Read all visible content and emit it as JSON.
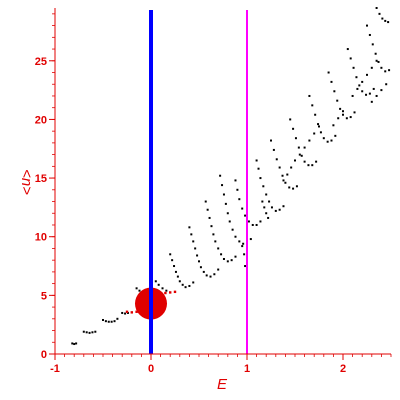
{
  "chart_data": {
    "type": "scatter",
    "xlabel": "E",
    "ylabel": "<n>",
    "xlim": [
      -1,
      2.5
    ],
    "ylim": [
      0,
      29.5
    ],
    "x_ticks": [
      -1,
      0,
      1,
      2
    ],
    "y_ticks": [
      0,
      5,
      10,
      15,
      20,
      25
    ],
    "grid": false,
    "colors": {
      "axes": "#e00000",
      "points": "#000000",
      "highlight": "#e00000",
      "line_zero": "#0000ff",
      "line_one": "#ff00ff"
    },
    "vertical_lines": [
      {
        "x": 0,
        "color": "#0000ff"
      },
      {
        "x": 1,
        "color": "#ff00ff"
      }
    ],
    "highlight_marker": {
      "x": 0.0,
      "y": 4.3
    },
    "highlight_points": [
      [
        -0.25,
        3.6
      ],
      [
        -0.2,
        3.55
      ],
      [
        -0.15,
        3.6
      ],
      [
        -0.1,
        3.7
      ],
      [
        0.05,
        4.9
      ],
      [
        0.1,
        5.1
      ],
      [
        0.15,
        5.2
      ],
      [
        0.2,
        5.25
      ],
      [
        0.25,
        5.3
      ]
    ],
    "points": [
      [
        -0.82,
        0.9
      ],
      [
        -0.8,
        0.85
      ],
      [
        -0.78,
        0.9
      ],
      [
        -0.7,
        1.9
      ],
      [
        -0.67,
        1.85
      ],
      [
        -0.64,
        1.8
      ],
      [
        -0.61,
        1.85
      ],
      [
        -0.58,
        1.9
      ],
      [
        -0.5,
        2.9
      ],
      [
        -0.47,
        2.8
      ],
      [
        -0.44,
        2.75
      ],
      [
        -0.41,
        2.75
      ],
      [
        -0.38,
        2.8
      ],
      [
        -0.35,
        3.0
      ],
      [
        -0.3,
        3.5
      ],
      [
        -0.27,
        3.45
      ],
      [
        -0.24,
        3.5
      ],
      [
        -0.15,
        5.6
      ],
      [
        -0.12,
        5.4
      ],
      [
        -0.09,
        5.3
      ],
      [
        -0.06,
        5.2
      ],
      [
        -0.03,
        5.1
      ],
      [
        0.05,
        6.2
      ],
      [
        0.08,
        5.9
      ],
      [
        0.12,
        5.6
      ],
      [
        0.16,
        5.4
      ],
      [
        0.2,
        8.5
      ],
      [
        0.22,
        8.0
      ],
      [
        0.24,
        7.5
      ],
      [
        0.26,
        7.0
      ],
      [
        0.28,
        6.6
      ],
      [
        0.3,
        6.2
      ],
      [
        0.33,
        5.9
      ],
      [
        0.36,
        5.7
      ],
      [
        0.4,
        5.8
      ],
      [
        0.44,
        6.1
      ],
      [
        0.4,
        10.8
      ],
      [
        0.42,
        10.2
      ],
      [
        0.44,
        9.6
      ],
      [
        0.46,
        9.0
      ],
      [
        0.48,
        8.4
      ],
      [
        0.5,
        7.9
      ],
      [
        0.52,
        7.4
      ],
      [
        0.55,
        7.0
      ],
      [
        0.58,
        6.7
      ],
      [
        0.62,
        6.6
      ],
      [
        0.66,
        6.8
      ],
      [
        0.7,
        7.2
      ],
      [
        0.57,
        13.0
      ],
      [
        0.59,
        12.3
      ],
      [
        0.61,
        11.6
      ],
      [
        0.63,
        10.9
      ],
      [
        0.65,
        10.2
      ],
      [
        0.67,
        9.6
      ],
      [
        0.7,
        9.0
      ],
      [
        0.73,
        8.5
      ],
      [
        0.76,
        8.1
      ],
      [
        0.8,
        7.9
      ],
      [
        0.84,
        8.0
      ],
      [
        0.88,
        8.3
      ],
      [
        0.72,
        15.2
      ],
      [
        0.74,
        14.4
      ],
      [
        0.76,
        13.6
      ],
      [
        0.78,
        12.8
      ],
      [
        0.8,
        12.0
      ],
      [
        0.82,
        11.3
      ],
      [
        0.85,
        10.6
      ],
      [
        0.88,
        10.0
      ],
      [
        0.92,
        9.6
      ],
      [
        0.96,
        9.4
      ],
      [
        1.0,
        9.5
      ],
      [
        1.04,
        9.8
      ],
      [
        0.88,
        14.8
      ],
      [
        0.9,
        14.0
      ],
      [
        0.92,
        13.2
      ],
      [
        0.95,
        12.4
      ],
      [
        0.98,
        11.8
      ],
      [
        1.02,
        11.3
      ],
      [
        1.06,
        11.0
      ],
      [
        1.1,
        11.0
      ],
      [
        1.14,
        11.3
      ],
      [
        0.98,
        7.5
      ],
      [
        1.0,
        6.2
      ],
      [
        0.97,
        8.5
      ],
      [
        0.95,
        9.2
      ],
      [
        1.1,
        16.5
      ],
      [
        1.12,
        15.8
      ],
      [
        1.14,
        15.0
      ],
      [
        1.17,
        14.3
      ],
      [
        1.2,
        13.6
      ],
      [
        1.23,
        13.0
      ],
      [
        1.26,
        12.5
      ],
      [
        1.3,
        12.2
      ],
      [
        1.34,
        12.3
      ],
      [
        1.38,
        12.6
      ],
      [
        1.25,
        18.2
      ],
      [
        1.28,
        17.4
      ],
      [
        1.31,
        16.6
      ],
      [
        1.34,
        15.9
      ],
      [
        1.37,
        15.2
      ],
      [
        1.4,
        14.6
      ],
      [
        1.44,
        14.2
      ],
      [
        1.48,
        14.1
      ],
      [
        1.52,
        14.3
      ],
      [
        1.2,
        12.0
      ],
      [
        1.22,
        11.6
      ],
      [
        1.18,
        12.5
      ],
      [
        1.16,
        13.0
      ],
      [
        1.45,
        20.0
      ],
      [
        1.48,
        19.2
      ],
      [
        1.51,
        18.4
      ],
      [
        1.54,
        17.6
      ],
      [
        1.57,
        16.9
      ],
      [
        1.6,
        16.4
      ],
      [
        1.64,
        16.1
      ],
      [
        1.68,
        16.1
      ],
      [
        1.72,
        16.4
      ],
      [
        1.38,
        14.8
      ],
      [
        1.42,
        15.3
      ],
      [
        1.46,
        15.9
      ],
      [
        1.5,
        16.5
      ],
      [
        1.65,
        22.0
      ],
      [
        1.68,
        21.2
      ],
      [
        1.71,
        20.4
      ],
      [
        1.74,
        19.6
      ],
      [
        1.77,
        18.9
      ],
      [
        1.8,
        18.4
      ],
      [
        1.84,
        18.1
      ],
      [
        1.88,
        18.2
      ],
      [
        1.92,
        18.6
      ],
      [
        1.85,
        24.0
      ],
      [
        1.88,
        23.2
      ],
      [
        1.91,
        22.4
      ],
      [
        1.94,
        21.6
      ],
      [
        1.97,
        20.9
      ],
      [
        2.0,
        20.4
      ],
      [
        2.04,
        20.1
      ],
      [
        2.08,
        20.2
      ],
      [
        2.12,
        20.6
      ],
      [
        1.55,
        17.0
      ],
      [
        1.6,
        17.6
      ],
      [
        1.65,
        18.2
      ],
      [
        1.7,
        18.8
      ],
      [
        1.75,
        19.4
      ],
      [
        2.05,
        26.0
      ],
      [
        2.08,
        25.2
      ],
      [
        2.11,
        24.4
      ],
      [
        2.14,
        23.6
      ],
      [
        2.17,
        22.9
      ],
      [
        2.2,
        22.4
      ],
      [
        2.24,
        22.1
      ],
      [
        2.28,
        22.2
      ],
      [
        2.32,
        22.6
      ],
      [
        2.25,
        28.0
      ],
      [
        2.28,
        27.2
      ],
      [
        2.31,
        26.4
      ],
      [
        2.34,
        25.6
      ],
      [
        2.37,
        24.9
      ],
      [
        2.4,
        24.4
      ],
      [
        2.44,
        24.1
      ],
      [
        2.48,
        24.2
      ],
      [
        2.35,
        29.5
      ],
      [
        2.38,
        29.0
      ],
      [
        2.41,
        28.6
      ],
      [
        2.44,
        28.4
      ],
      [
        2.47,
        28.3
      ],
      [
        2.1,
        22.0
      ],
      [
        2.15,
        22.6
      ],
      [
        2.2,
        23.2
      ],
      [
        2.25,
        23.8
      ],
      [
        2.3,
        24.4
      ],
      [
        2.35,
        25.0
      ],
      [
        1.9,
        19.5
      ],
      [
        1.95,
        20.1
      ],
      [
        2.0,
        20.7
      ],
      [
        2.3,
        21.5
      ],
      [
        2.35,
        22.0
      ],
      [
        2.4,
        22.5
      ],
      [
        2.45,
        23.0
      ]
    ]
  }
}
